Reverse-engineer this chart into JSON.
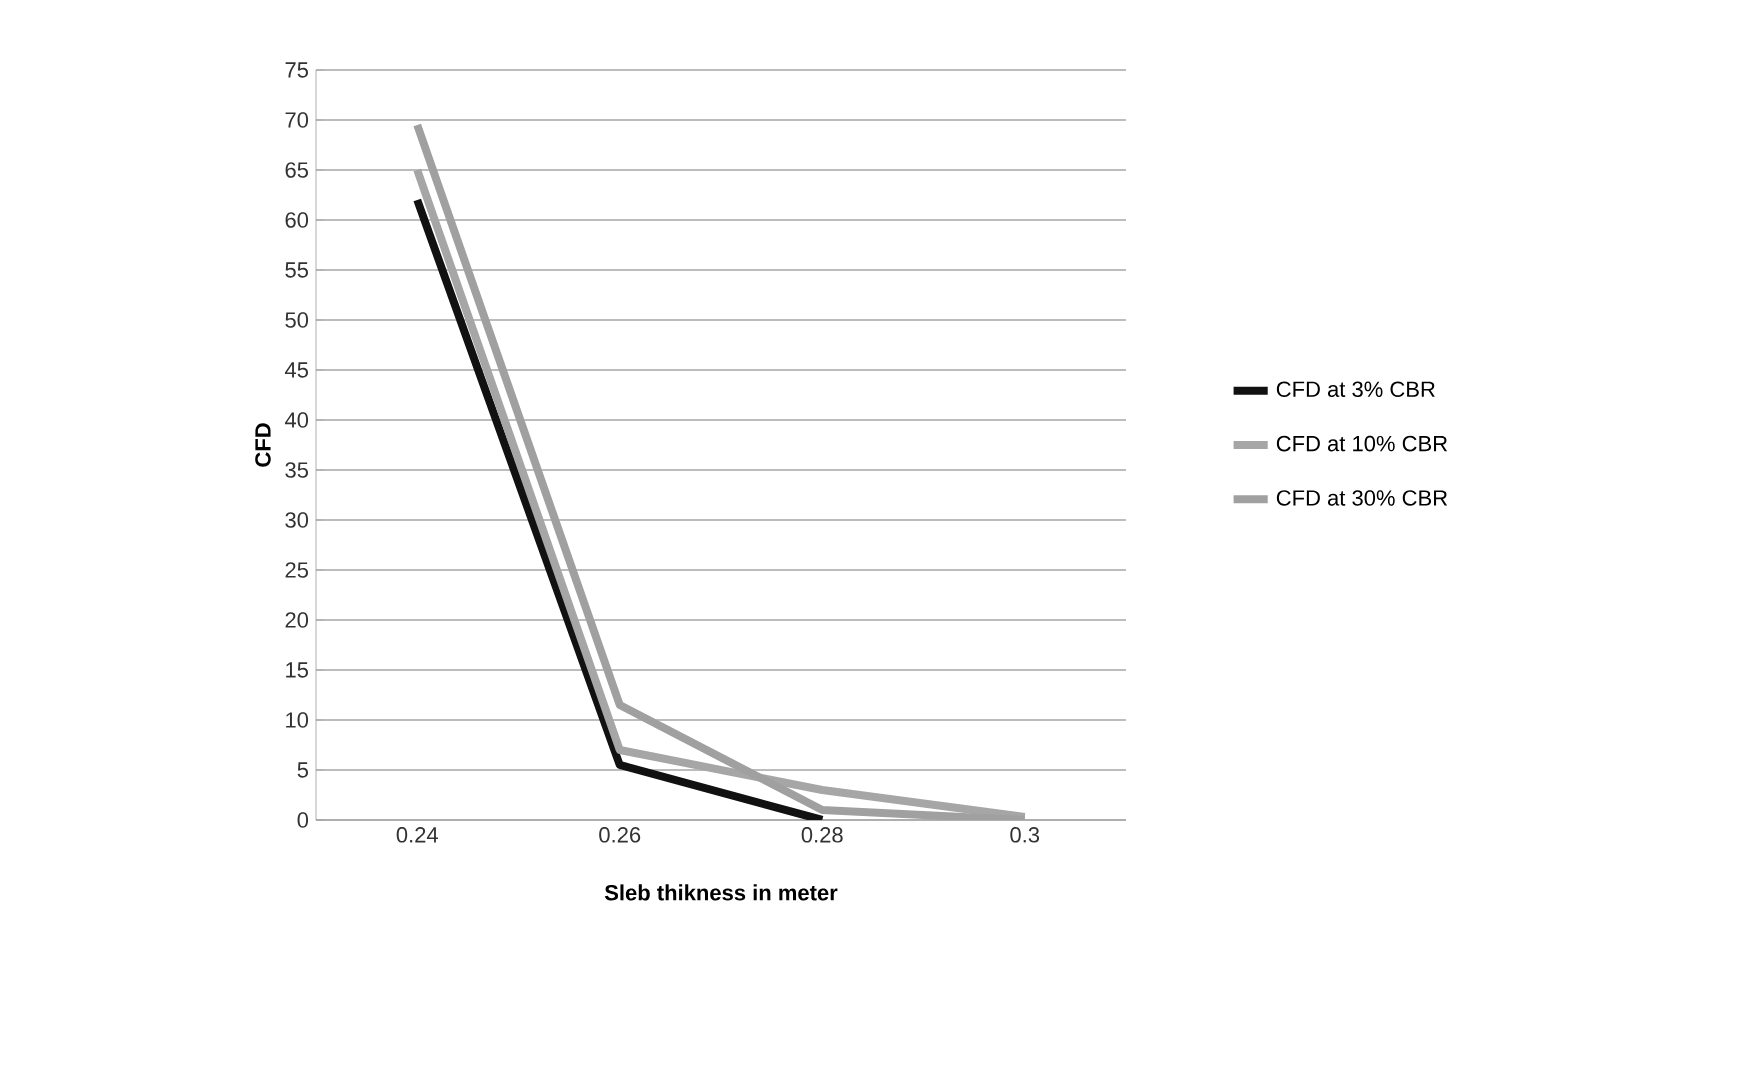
{
  "chart_data": {
    "type": "line",
    "xlabel": "Sleb thikness in meter",
    "ylabel": "CFD",
    "categories": [
      "0.24",
      "0.26",
      "0.28",
      "0.3"
    ],
    "series": [
      {
        "name": "CFD at 3% CBR",
        "color": "#111111",
        "values": [
          62,
          5.5,
          0,
          null
        ]
      },
      {
        "name": "CFD at 10% CBR",
        "color": "#a6a6a6",
        "values": [
          65,
          7,
          3,
          0.3
        ]
      },
      {
        "name": "CFD at 30% CBR",
        "color": "#a0a0a0",
        "values": [
          69.5,
          11.5,
          1,
          0
        ]
      }
    ],
    "ylim": [
      0,
      75
    ],
    "yticks": [
      0,
      5,
      10,
      15,
      20,
      25,
      30,
      35,
      40,
      45,
      50,
      55,
      60,
      65,
      70,
      75
    ],
    "grid": "y",
    "legend": "right",
    "marker": "none",
    "line_style": "solid"
  }
}
